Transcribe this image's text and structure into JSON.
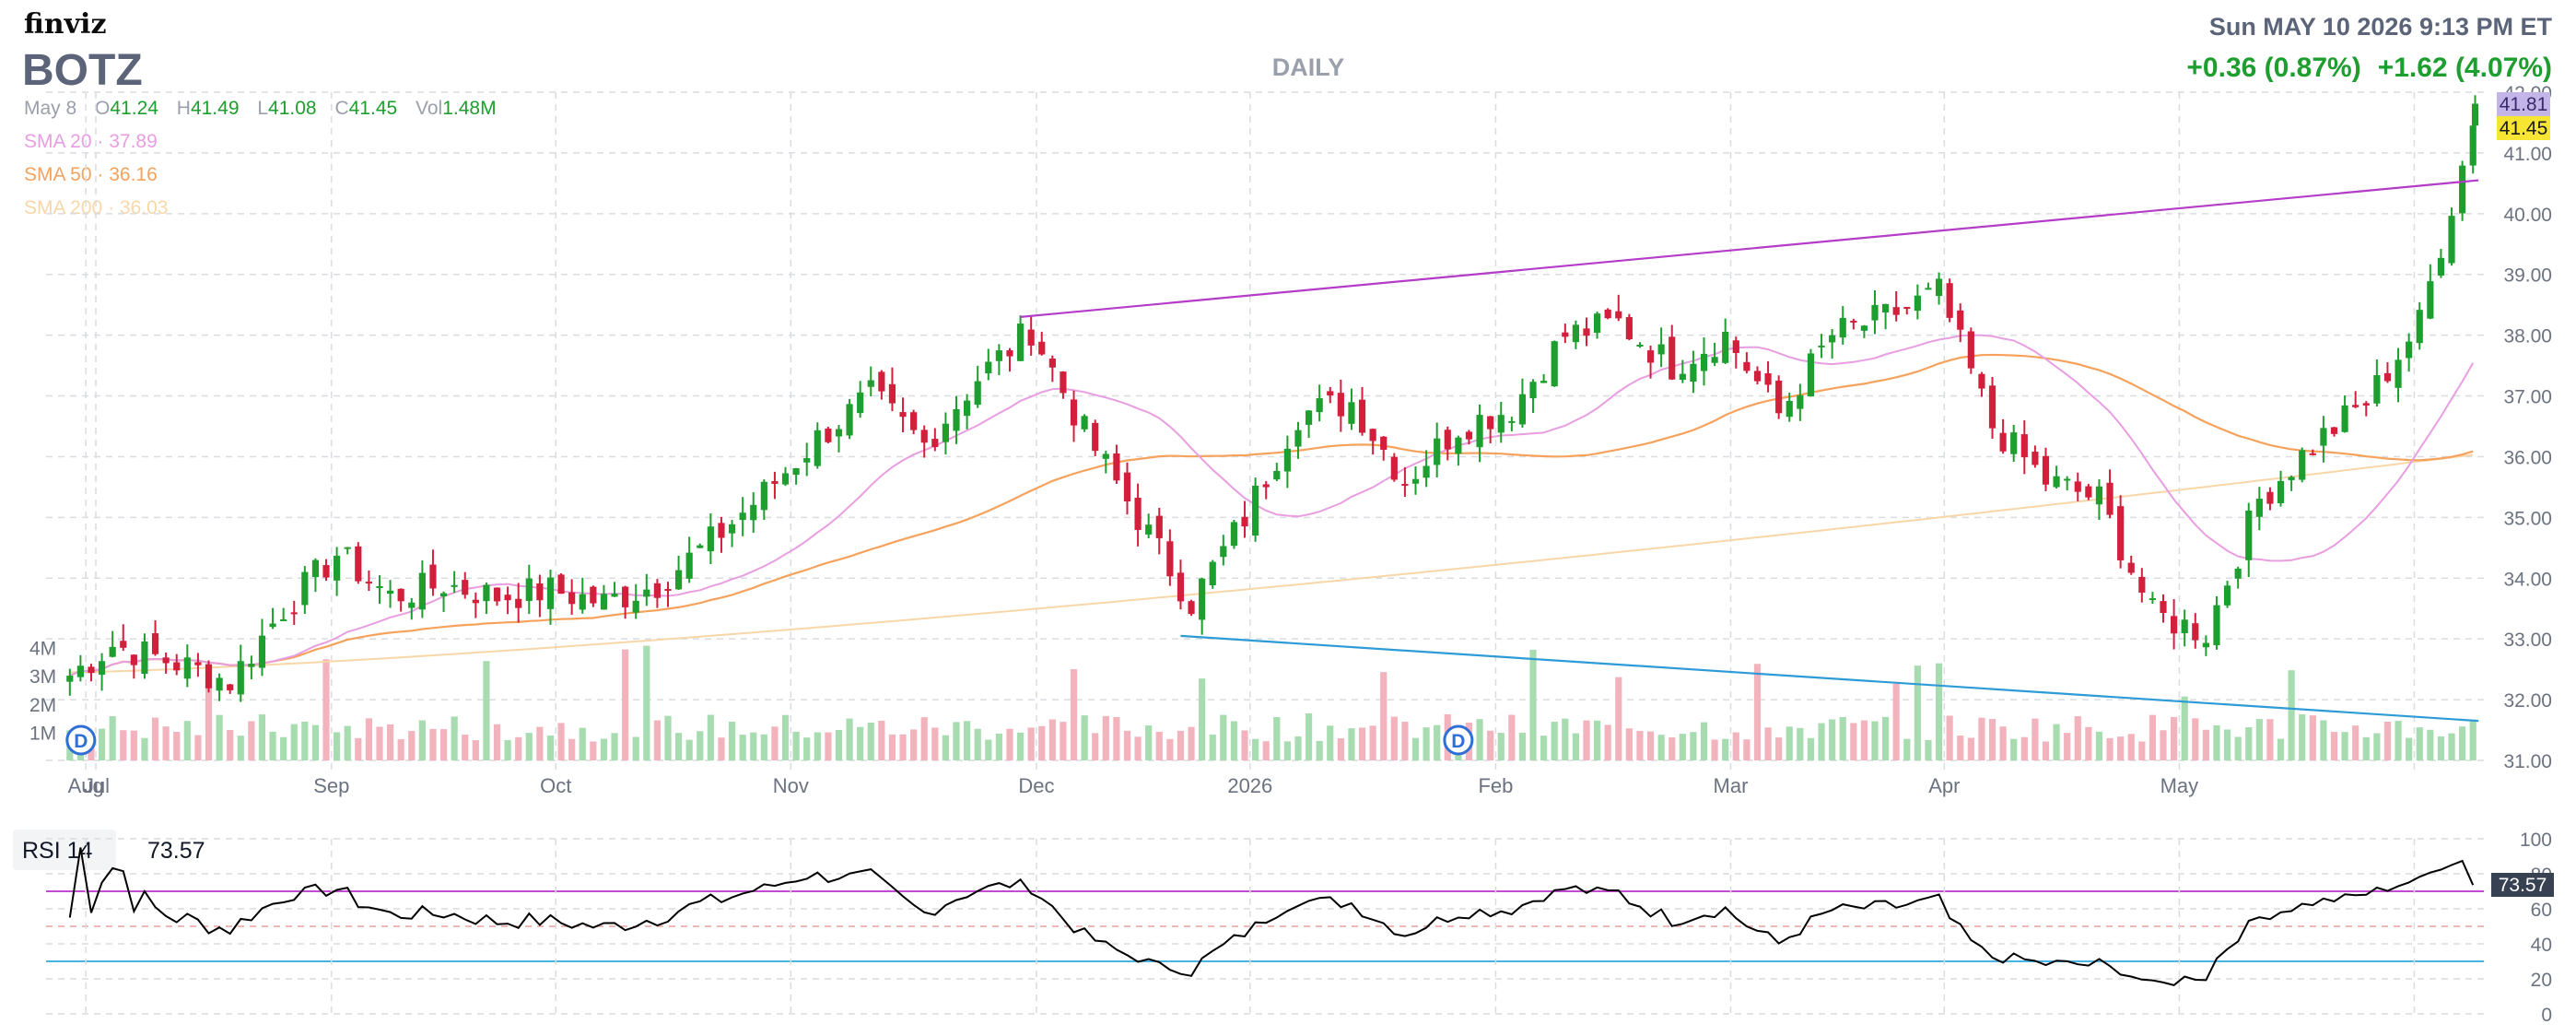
{
  "header": {
    "logo": "finviz",
    "ticker": "BOTZ",
    "period": "DAILY",
    "datetime": "Sun MAY 10 2026 9:13 PM ET",
    "change_day": "+0.36 (0.87%)",
    "change_ext": "+1.62 (4.07%)"
  },
  "ohlc": {
    "date": "May 8",
    "open_label": "O",
    "open": "41.24",
    "high_label": "H",
    "high": "41.49",
    "low_label": "L",
    "low": "41.08",
    "close_label": "C",
    "close": "41.45",
    "vol_label": "Vol",
    "vol": "1.48M"
  },
  "indicators": [
    {
      "label": "SMA 20",
      "value": "37.89",
      "color": "#e89ee0"
    },
    {
      "label": "SMA 50",
      "value": "36.16",
      "color": "#f5a25d"
    },
    {
      "label": "SMA 200",
      "value": "36.03",
      "color": "#f7d7a8"
    }
  ],
  "price_tags": {
    "ext": "41.81",
    "last": "41.45"
  },
  "rsi": {
    "label": "RSI 14",
    "value": "73.57"
  },
  "dividend_marker": "D",
  "colors": {
    "up": "#1e9e2f",
    "down": "#d21f3c",
    "vol_up": "#a7dbb0",
    "vol_down": "#f2b3bd",
    "upper_trend": "#b43cc8",
    "lower_trend": "#2e9bd6",
    "rsi_line": "#000000",
    "rsi_upper": "#c24ccf",
    "rsi_lower": "#4ab3e6"
  },
  "chart_data": {
    "type": "candlestick",
    "y_axis": {
      "min": 31.0,
      "max": 42.0,
      "ticks": [
        "31.00",
        "32.00",
        "33.00",
        "34.00",
        "35.00",
        "36.00",
        "37.00",
        "38.00",
        "39.00",
        "40.00",
        "41.00",
        "42.00"
      ]
    },
    "x_axis": {
      "labels": [
        "Jul",
        "Aug",
        "Sep",
        "Oct",
        "Nov",
        "Dec",
        "2026",
        "Feb",
        "Mar",
        "Apr",
        "May"
      ]
    },
    "volume_axis": {
      "ticks": [
        "1M",
        "2M",
        "3M",
        "4M"
      ]
    },
    "rsi_axis": {
      "min": 0,
      "max": 100,
      "ticks": [
        "0",
        "20",
        "40",
        "60",
        "80",
        "100"
      ],
      "overbought": 70,
      "oversold": 30
    },
    "close_anchors": [
      [
        "Jun 27",
        32.4
      ],
      [
        "Jul 3",
        32.9
      ],
      [
        "Jul 11",
        32.6
      ],
      [
        "Jul 18",
        32.3
      ],
      [
        "Jul 25",
        33.5
      ],
      [
        "Aug 1",
        34.4
      ],
      [
        "Aug 8",
        33.7
      ],
      [
        "Aug 15",
        33.9
      ],
      [
        "Aug 22",
        33.7
      ],
      [
        "Aug 29",
        33.8
      ],
      [
        "Sep 5",
        33.6
      ],
      [
        "Sep 12",
        33.9
      ],
      [
        "Sep 19",
        34.6
      ],
      [
        "Sep 26",
        35.4
      ],
      [
        "Oct 3",
        36.3
      ],
      [
        "Oct 10",
        37.0
      ],
      [
        "Oct 17",
        36.2
      ],
      [
        "Oct 24",
        37.3
      ],
      [
        "Oct 31",
        38.1
      ],
      [
        "Nov 7",
        36.4
      ],
      [
        "Nov 14",
        35.0
      ],
      [
        "Nov 21",
        33.6
      ],
      [
        "Nov 28",
        35.0
      ],
      [
        "Dec 5",
        36.7
      ],
      [
        "Dec 12",
        36.9
      ],
      [
        "Dec 19",
        35.6
      ],
      [
        "Dec 26",
        36.5
      ],
      [
        "Jan 2",
        36.8
      ],
      [
        "Jan 9",
        38.0
      ],
      [
        "Jan 16",
        38.2
      ],
      [
        "Jan 23",
        37.5
      ],
      [
        "Jan 30",
        38.0
      ],
      [
        "Feb 6",
        36.7
      ],
      [
        "Feb 13",
        38.0
      ],
      [
        "Feb 20",
        38.3
      ],
      [
        "Feb 27",
        38.7
      ],
      [
        "Mar 6",
        36.5
      ],
      [
        "Mar 13",
        35.6
      ],
      [
        "Mar 20",
        35.3
      ],
      [
        "Mar 27",
        33.4
      ],
      [
        "Apr 3",
        33.1
      ],
      [
        "Apr 10",
        35.3
      ],
      [
        "Apr 17",
        36.2
      ],
      [
        "Apr 24",
        36.9
      ],
      [
        "May 1",
        38.2
      ],
      [
        "May 8",
        41.45
      ]
    ],
    "upper_trendline": [
      [
        "Oct 30",
        38.3
      ],
      [
        "May 8",
        40.55
      ]
    ],
    "lower_trendline": [
      [
        "Nov 20",
        33.05
      ],
      [
        "May 8",
        31.65
      ]
    ],
    "dividends": [
      "Jun 27",
      "Dec 26"
    ]
  }
}
